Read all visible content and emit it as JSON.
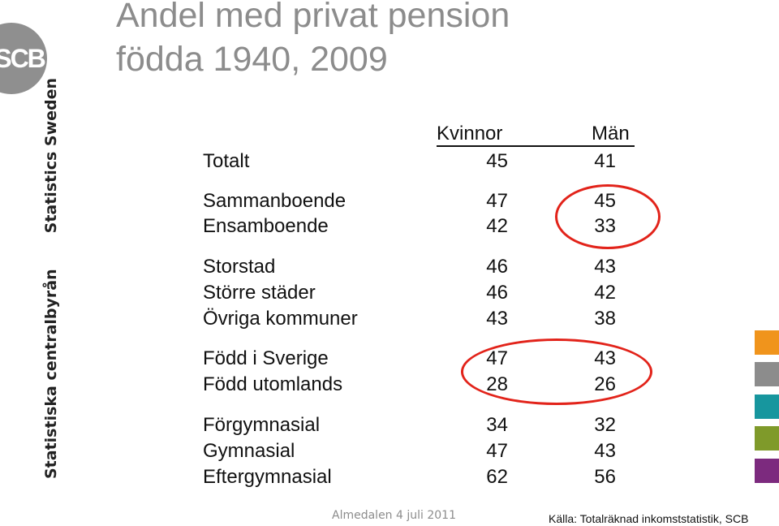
{
  "title": {
    "line1": "Andel med privat pension",
    "line2": "födda 1940, 2009"
  },
  "logo": {
    "text": "SCB",
    "icon": "scb-logo-icon",
    "color": "#8f8f8f"
  },
  "side": {
    "sv": "Statistiska centralbyrån",
    "en": "Statistics Sweden"
  },
  "table": {
    "headers": {
      "women": "Kvinnor",
      "men": "Män"
    },
    "rows": [
      {
        "label": "Totalt",
        "women": "45",
        "men": "41"
      },
      {
        "label": "Sammanboende",
        "women": "47",
        "men": "45"
      },
      {
        "label": "Ensamboende",
        "women": "42",
        "men": "33"
      },
      {
        "label": "Storstad",
        "women": "46",
        "men": "43"
      },
      {
        "label": "Större städer",
        "women": "46",
        "men": "42"
      },
      {
        "label": "Övriga kommuner",
        "women": "43",
        "men": "38"
      },
      {
        "label": "Född i Sverige",
        "women": "47",
        "men": "43"
      },
      {
        "label": "Född utomlands",
        "women": "28",
        "men": "26"
      },
      {
        "label": "Förgymnasial",
        "women": "34",
        "men": "32"
      },
      {
        "label": "Gymnasial",
        "women": "47",
        "men": "43"
      },
      {
        "label": "Eftergymnasial",
        "women": "62",
        "men": "56"
      }
    ]
  },
  "highlight_color": "#e2231a",
  "swatch_colors": [
    "#f0941c",
    "#8c8c8c",
    "#17969e",
    "#7f9a2a",
    "#7c2a7e"
  ],
  "footer": {
    "center": "Almedalen 4 juli 2011",
    "source": "Källa: Totalräknad inkomststatistik, SCB"
  }
}
